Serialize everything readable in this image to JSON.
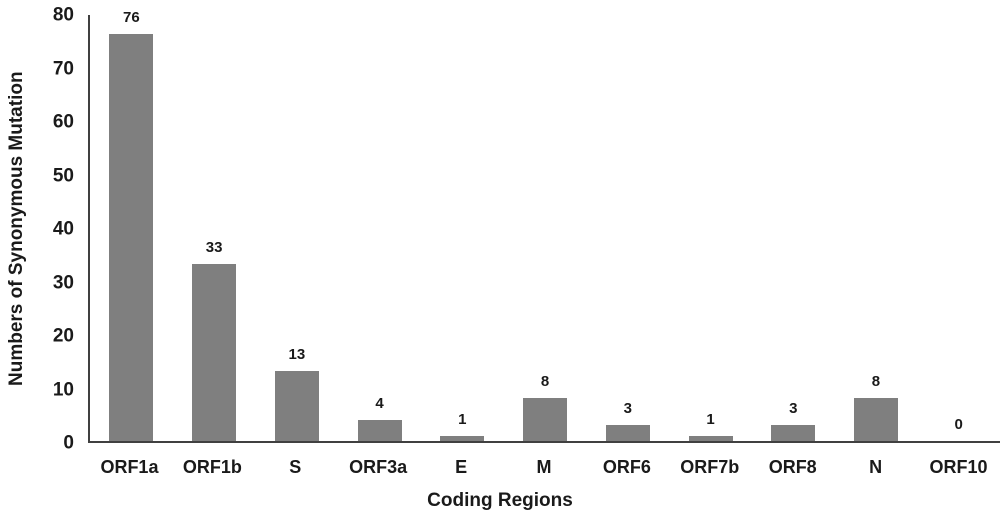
{
  "chart_data": {
    "type": "bar",
    "categories": [
      "ORF1a",
      "ORF1b",
      "S",
      "ORF3a",
      "E",
      "M",
      "ORF6",
      "ORF7b",
      "ORF8",
      "N",
      "ORF10"
    ],
    "values": [
      76,
      33,
      13,
      4,
      1,
      8,
      3,
      1,
      3,
      8,
      0
    ],
    "title": "",
    "xlabel": "Coding Regions",
    "ylabel": "Numbers of Synonymous Mutation",
    "ylim": [
      0,
      80
    ],
    "yticks": [
      0,
      10,
      20,
      30,
      40,
      50,
      60,
      70,
      80
    ],
    "grid": false,
    "legend": false,
    "data_labels": true,
    "bar_color": "#7f7f7f",
    "axis_color": "#404040",
    "text_color": "#1a1a1a",
    "background_color": "#ffffff"
  }
}
